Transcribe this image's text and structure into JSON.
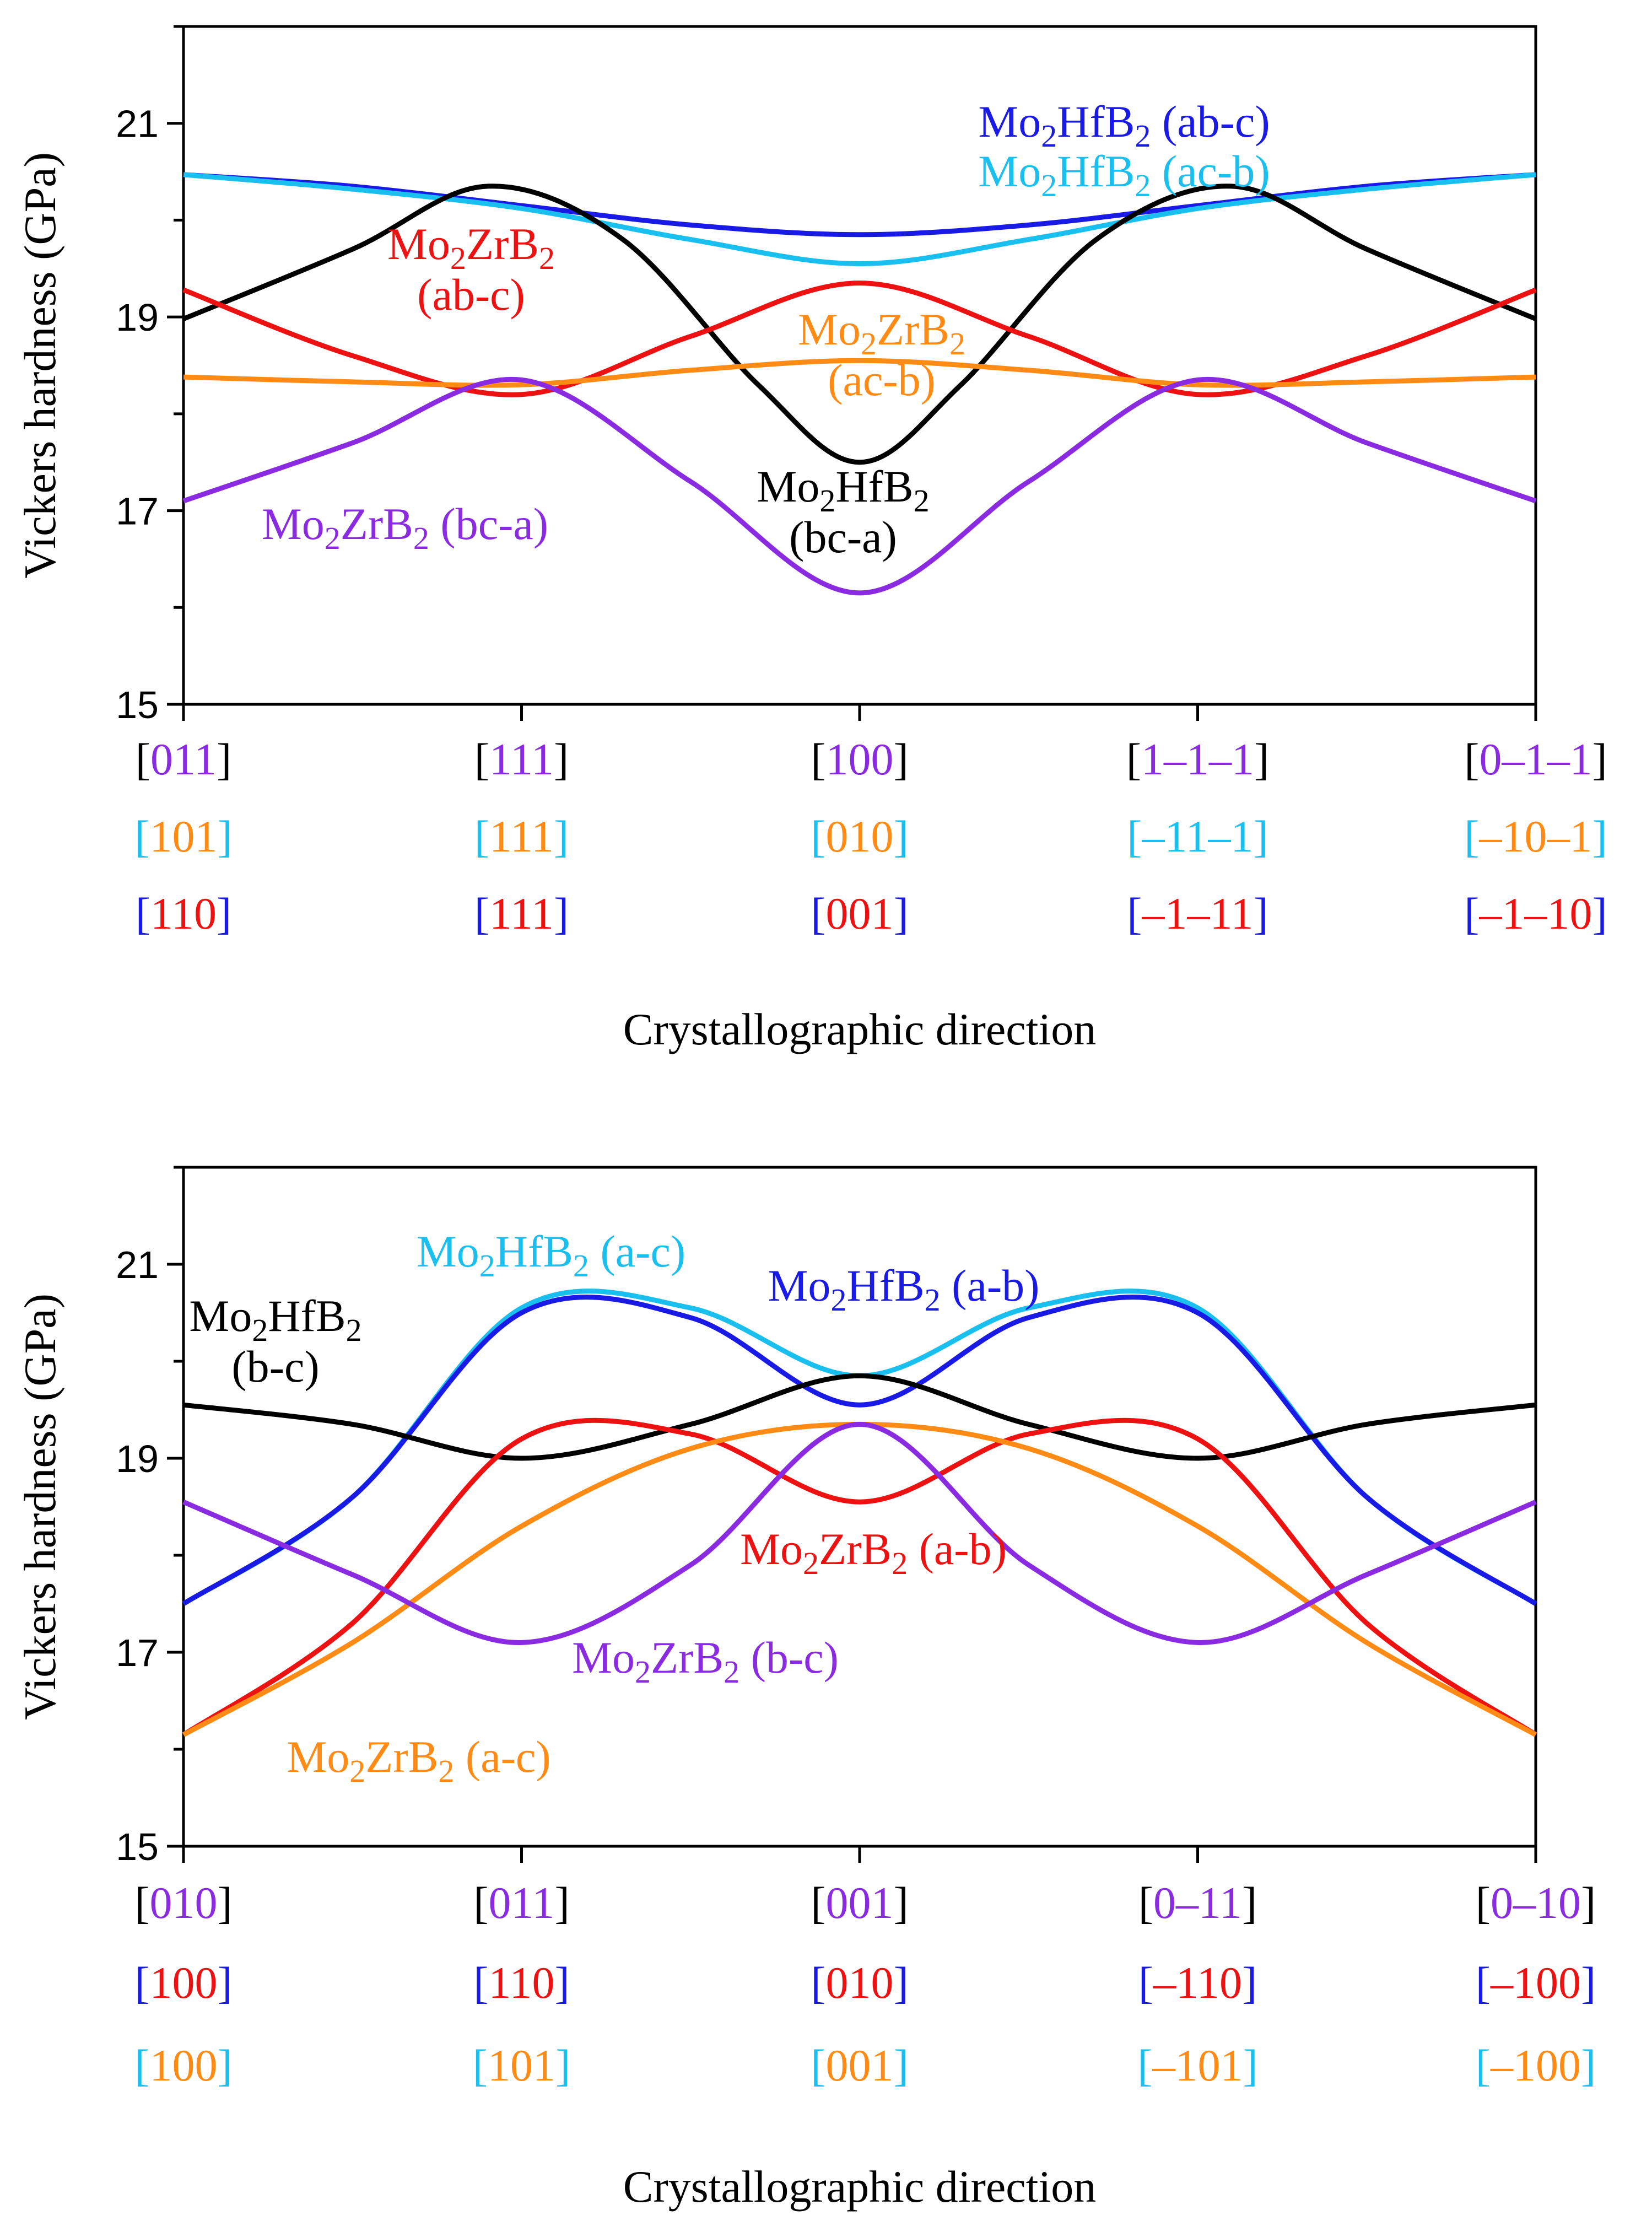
{
  "chart_data": [
    {
      "type": "line",
      "panel": "top",
      "ylabel": "Vickers hardness (GPa)",
      "xlabel": "Crystallographic direction",
      "ylim": [
        15,
        22
      ],
      "yticks": [
        15,
        17,
        19,
        21
      ],
      "xlim": [
        0,
        4
      ],
      "x_tick_rows": [
        {
          "color": "#000000",
          "labels": [
            "[011]",
            "[111]",
            "[100]",
            "[1–1–1]",
            "[0–1–1]"
          ],
          "inner_colors": [
            "#8a2be2",
            "#8a2be2",
            "#8a2be2",
            "#8a2be2",
            "#8a2be2"
          ]
        },
        {
          "color": "#19bfef",
          "labels": [
            "[101]",
            "[111]",
            "[010]",
            "[–11–1]",
            "[–10–1]"
          ],
          "inner_colors": [
            "#ff8a14",
            "#ff8a14",
            "#ff8a14",
            "#19bfef",
            "#ff8a14"
          ]
        },
        {
          "color": "#1a1ae6",
          "labels": [
            "[110]",
            "[111]",
            "[001]",
            "[–1–11]",
            "[–1–10]"
          ],
          "inner_colors": [
            "#ee1111",
            "#ee1111",
            "#ee1111",
            "#ee1111",
            "#ee1111"
          ]
        }
      ],
      "series": [
        {
          "name": "Mo2HfB2 (ab-c)",
          "color": "#1a1ae6",
          "x": [
            0,
            0.5,
            1,
            1.5,
            2,
            2.5,
            3,
            3.5,
            4
          ],
          "values": [
            20.47,
            20.35,
            20.15,
            19.95,
            19.85,
            19.95,
            20.15,
            20.35,
            20.47
          ]
        },
        {
          "name": "Mo2HfB2 (ac-b)",
          "color": "#19bfef",
          "x": [
            0,
            0.5,
            1,
            1.5,
            2,
            2.5,
            3,
            3.5,
            4
          ],
          "values": [
            20.47,
            20.32,
            20.12,
            19.8,
            19.55,
            19.8,
            20.12,
            20.32,
            20.47
          ]
        },
        {
          "name": "Mo2HfB2 (bc-a)",
          "color": "#000000",
          "x": [
            0,
            0.5,
            0.9,
            1.3,
            1.7,
            2,
            2.3,
            2.7,
            3.1,
            3.5,
            4
          ],
          "values": [
            18.98,
            19.7,
            20.35,
            19.8,
            18.3,
            17.5,
            18.3,
            19.8,
            20.35,
            19.7,
            18.98
          ]
        },
        {
          "name": "Mo2ZrB2 (ab-c)",
          "color": "#ee1111",
          "x": [
            0,
            0.5,
            1,
            1.5,
            2,
            2.5,
            3,
            3.5,
            4
          ],
          "values": [
            19.28,
            18.6,
            18.2,
            18.8,
            19.35,
            18.8,
            18.2,
            18.6,
            19.28
          ]
        },
        {
          "name": "Mo2ZrB2 (ac-b)",
          "color": "#ff8a14",
          "x": [
            0,
            0.5,
            1,
            1.5,
            2,
            2.5,
            3,
            3.5,
            4
          ],
          "values": [
            18.38,
            18.33,
            18.3,
            18.45,
            18.55,
            18.45,
            18.3,
            18.33,
            18.38
          ]
        },
        {
          "name": "Mo2ZrB2 (bc-a)",
          "color": "#8a2be2",
          "x": [
            0,
            0.5,
            1,
            1.5,
            2,
            2.5,
            3,
            3.5,
            4
          ],
          "values": [
            17.1,
            17.7,
            18.35,
            17.3,
            16.15,
            17.3,
            18.35,
            17.7,
            17.1
          ]
        }
      ],
      "annotations": [
        {
          "series": "Mo2HfB2 (ab-c)",
          "lines": [
            {
              "base": "Mo",
              "sub1": "2",
              "mid": "HfB",
              "sub2": "2",
              "tail": " (ab-c)"
            }
          ]
        },
        {
          "series": "Mo2HfB2 (ac-b)",
          "lines": [
            {
              "base": "Mo",
              "sub1": "2",
              "mid": "HfB",
              "sub2": "2",
              "tail": " (ac-b)"
            }
          ]
        },
        {
          "series": "Mo2ZrB2 (ab-c)",
          "lines": [
            {
              "base": "Mo",
              "sub1": "2",
              "mid": "ZrB",
              "sub2": "2",
              "tail": ""
            },
            {
              "plain": "(ab-c)"
            }
          ]
        },
        {
          "series": "Mo2ZrB2 (ac-b)",
          "lines": [
            {
              "base": "Mo",
              "sub1": "2",
              "mid": "ZrB",
              "sub2": "2",
              "tail": ""
            },
            {
              "plain": "(ac-b)"
            }
          ]
        },
        {
          "series": "Mo2HfB2 (bc-a)",
          "lines": [
            {
              "base": "Mo",
              "sub1": "2",
              "mid": "HfB",
              "sub2": "2",
              "tail": ""
            },
            {
              "plain": "(bc-a)"
            }
          ]
        },
        {
          "series": "Mo2ZrB2 (bc-a)",
          "lines": [
            {
              "base": "Mo",
              "sub1": "2",
              "mid": "ZrB",
              "sub2": "2",
              "tail": " (bc-a)"
            }
          ]
        }
      ]
    },
    {
      "type": "line",
      "panel": "bottom",
      "ylabel": "Vickers hardness (GPa)",
      "xlabel": "Crystallographic direction",
      "ylim": [
        15,
        22
      ],
      "yticks": [
        15,
        17,
        19,
        21
      ],
      "xlim": [
        0,
        4
      ],
      "x_tick_rows": [
        {
          "color": "#000000",
          "labels": [
            "[010]",
            "[011]",
            "[001]",
            "[0–11]",
            "[0–10]"
          ],
          "inner_colors": [
            "#8a2be2",
            "#8a2be2",
            "#8a2be2",
            "#8a2be2",
            "#8a2be2"
          ]
        },
        {
          "color": "#1a1ae6",
          "labels": [
            "[100]",
            "[110]",
            "[010]",
            "[–110]",
            "[–100]"
          ],
          "inner_colors": [
            "#ee1111",
            "#ee1111",
            "#ee1111",
            "#ee1111",
            "#ee1111"
          ]
        },
        {
          "color": "#19bfef",
          "labels": [
            "[100]",
            "[101]",
            "[001]",
            "[–101]",
            "[–100]"
          ],
          "inner_colors": [
            "#ff8a14",
            "#ff8a14",
            "#ff8a14",
            "#ff8a14",
            "#ff8a14"
          ]
        }
      ],
      "series": [
        {
          "name": "Mo2HfB2 (a-c)",
          "color": "#19bfef",
          "x": [
            0,
            0.5,
            1,
            1.5,
            2,
            2.5,
            3,
            3.5,
            4
          ],
          "values": [
            17.5,
            18.6,
            20.55,
            20.55,
            19.85,
            20.55,
            20.55,
            18.6,
            17.5
          ]
        },
        {
          "name": "Mo2HfB2 (a-b)",
          "color": "#1a1ae6",
          "x": [
            0,
            0.5,
            1,
            1.5,
            2,
            2.5,
            3,
            3.5,
            4
          ],
          "values": [
            17.5,
            18.6,
            20.5,
            20.45,
            19.55,
            20.45,
            20.5,
            18.6,
            17.5
          ]
        },
        {
          "name": "Mo2HfB2 (b-c)",
          "color": "#000000",
          "x": [
            0,
            0.5,
            1,
            1.5,
            2,
            2.5,
            3,
            3.5,
            4
          ],
          "values": [
            19.55,
            19.35,
            19.0,
            19.35,
            19.85,
            19.35,
            19.0,
            19.35,
            19.55
          ]
        },
        {
          "name": "Mo2ZrB2 (a-b)",
          "color": "#ee1111",
          "x": [
            0,
            0.5,
            1,
            1.5,
            2,
            2.5,
            3,
            3.5,
            4
          ],
          "values": [
            16.15,
            17.3,
            19.2,
            19.25,
            18.55,
            19.25,
            19.2,
            17.3,
            16.15
          ]
        },
        {
          "name": "Mo2ZrB2 (a-c)",
          "color": "#ff8a14",
          "x": [
            0,
            0.5,
            1,
            1.5,
            2,
            2.5,
            3,
            3.5,
            4
          ],
          "values": [
            16.15,
            17.1,
            18.3,
            19.1,
            19.35,
            19.1,
            18.3,
            17.1,
            16.15
          ]
        },
        {
          "name": "Mo2ZrB2 (b-c)",
          "color": "#8a2be2",
          "x": [
            0,
            0.5,
            1,
            1.5,
            2,
            2.5,
            3,
            3.5,
            4
          ],
          "values": [
            18.55,
            17.8,
            17.1,
            17.9,
            19.35,
            17.9,
            17.1,
            17.8,
            18.55
          ]
        }
      ],
      "annotations": [
        {
          "series": "Mo2HfB2 (a-c)",
          "lines": [
            {
              "base": "Mo",
              "sub1": "2",
              "mid": "HfB",
              "sub2": "2",
              "tail": " (a-c)"
            }
          ]
        },
        {
          "series": "Mo2HfB2 (a-b)",
          "lines": [
            {
              "base": "Mo",
              "sub1": "2",
              "mid": "HfB",
              "sub2": "2",
              "tail": " (a-b)"
            }
          ]
        },
        {
          "series": "Mo2HfB2 (b-c)",
          "lines": [
            {
              "base": "Mo",
              "sub1": "2",
              "mid": "HfB",
              "sub2": "2",
              "tail": ""
            },
            {
              "plain": "(b-c)"
            }
          ]
        },
        {
          "series": "Mo2ZrB2 (a-b)",
          "lines": [
            {
              "base": "Mo",
              "sub1": "2",
              "mid": "ZrB",
              "sub2": "2",
              "tail": " (a-b)"
            }
          ]
        },
        {
          "series": "Mo2ZrB2 (b-c)",
          "lines": [
            {
              "base": "Mo",
              "sub1": "2",
              "mid": "ZrB",
              "sub2": "2",
              "tail": " (b-c)"
            }
          ]
        },
        {
          "series": "Mo2ZrB2 (a-c)",
          "lines": [
            {
              "base": "Mo",
              "sub1": "2",
              "mid": "ZrB",
              "sub2": "2",
              "tail": " (a-c)"
            }
          ]
        }
      ]
    }
  ]
}
